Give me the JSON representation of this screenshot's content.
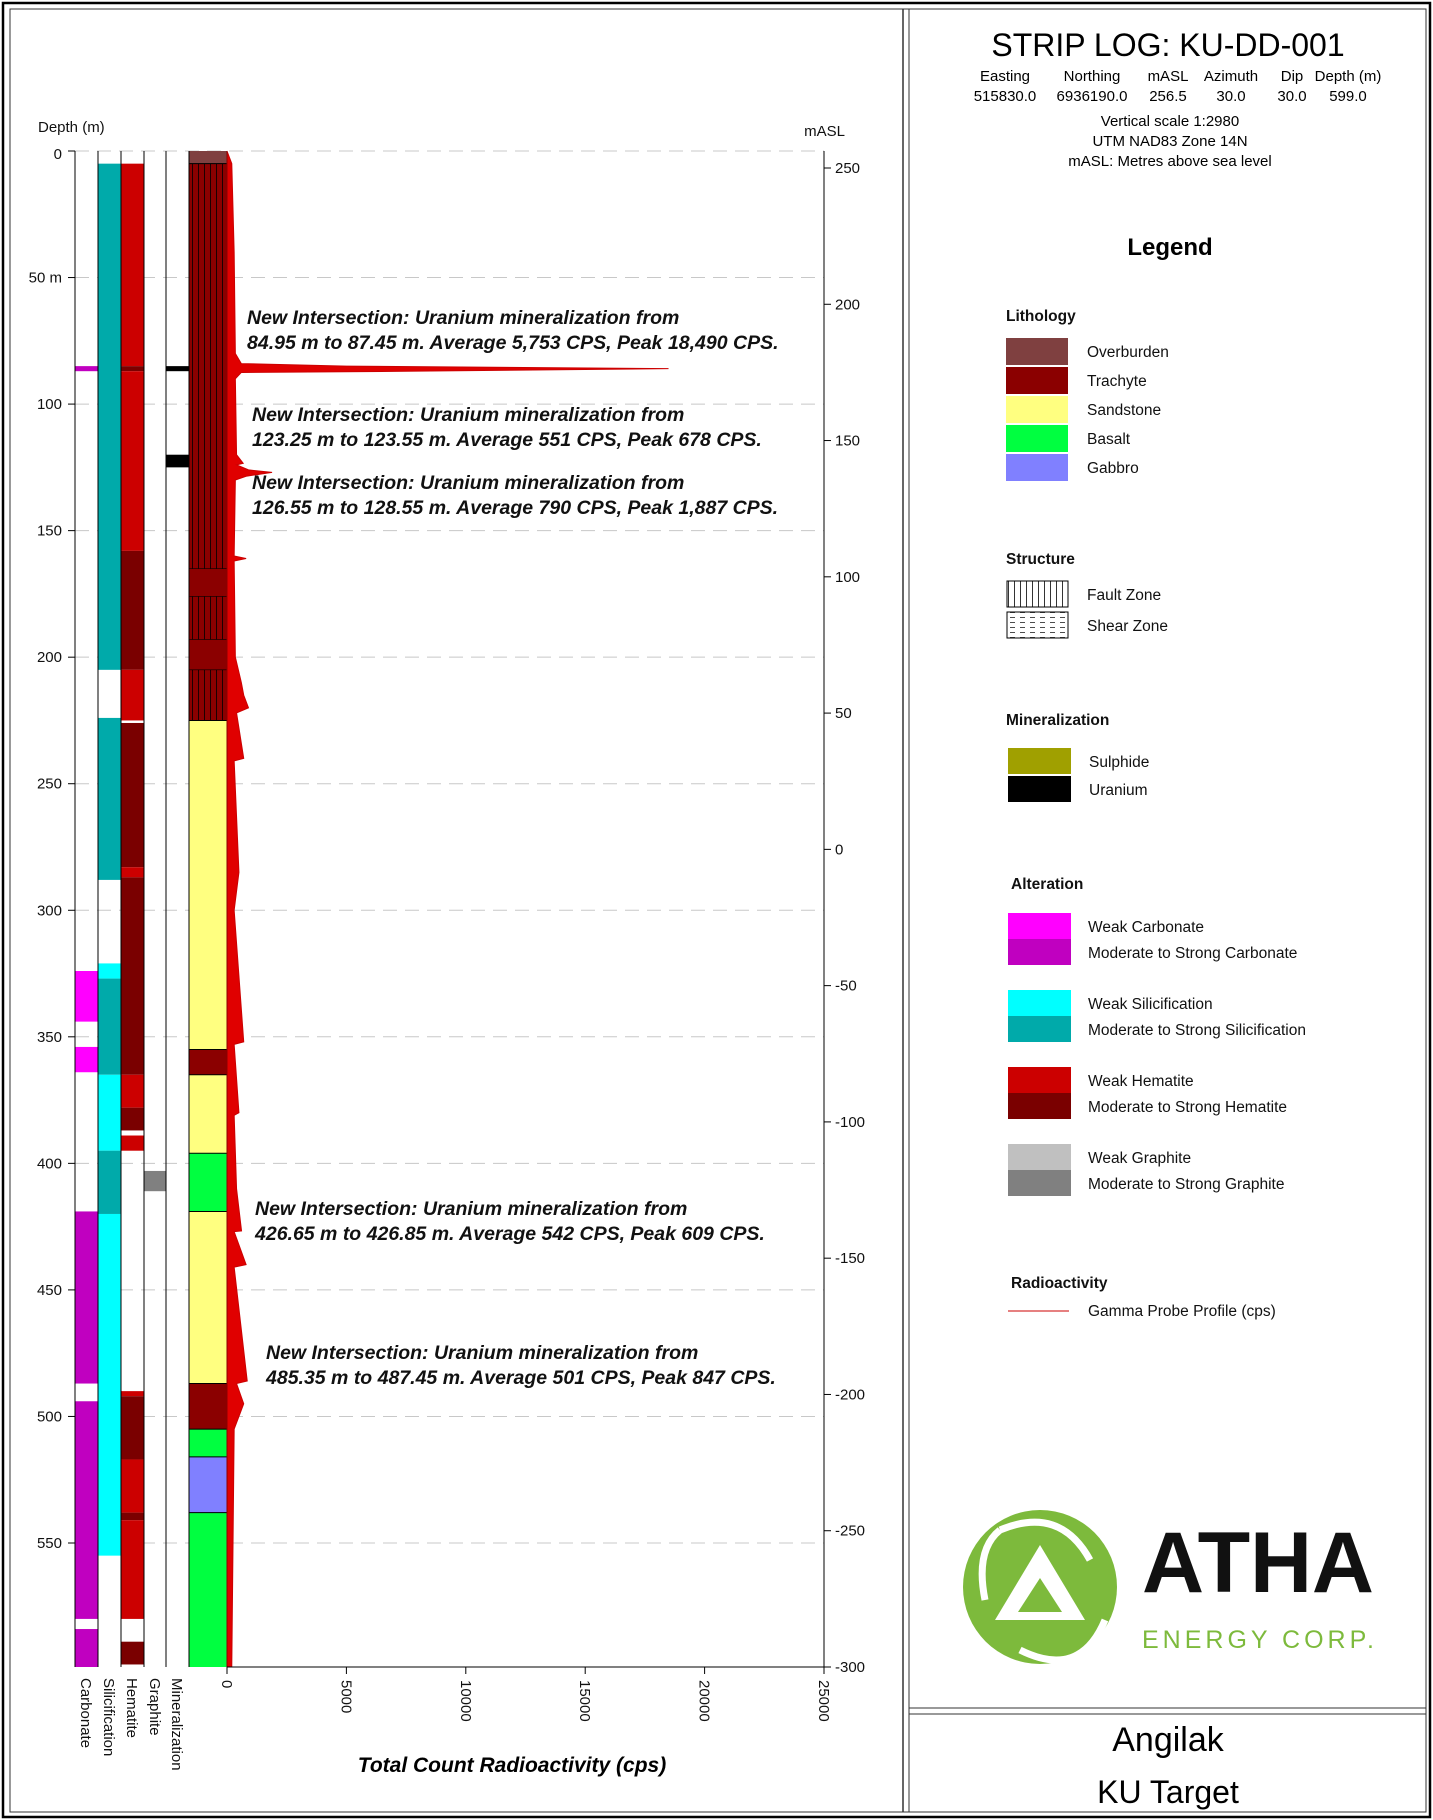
{
  "header": {
    "title": "STRIP LOG: KU-DD-001",
    "columns": [
      {
        "label": "Easting",
        "value": "515830.0"
      },
      {
        "label": "Northing",
        "value": "6936190.0"
      },
      {
        "label": "mASL",
        "value": "256.5"
      },
      {
        "label": "Azimuth",
        "value": "30.0"
      },
      {
        "label": "Dip",
        "value": "30.0"
      },
      {
        "label": "Depth (m)",
        "value": "599.0"
      }
    ],
    "notes": [
      "Vertical scale 1:2980",
      "UTM NAD83 Zone 14N",
      "mASL: Metres above sea level"
    ]
  },
  "legend": {
    "title": "Legend",
    "lithology": {
      "heading": "Lithology",
      "items": [
        {
          "label": "Overburden",
          "color": "#7f4040"
        },
        {
          "label": "Trachyte",
          "color": "#8b0000"
        },
        {
          "label": "Sandstone",
          "color": "#ffff80"
        },
        {
          "label": "Basalt",
          "color": "#00ff40"
        },
        {
          "label": "Gabbro",
          "color": "#8080ff"
        }
      ]
    },
    "structure": {
      "heading": "Structure",
      "items": [
        {
          "label": "Fault Zone",
          "pattern": "vertical-lines"
        },
        {
          "label": "Shear Zone",
          "pattern": "dashes"
        }
      ]
    },
    "mineralization": {
      "heading": "Mineralization",
      "items": [
        {
          "label": "Sulphide",
          "color": "#a0a000"
        },
        {
          "label": "Uranium",
          "color": "#000000"
        }
      ]
    },
    "alteration": {
      "heading": "Alteration",
      "items": [
        {
          "label": "Weak Carbonate",
          "color": "#ff00ff"
        },
        {
          "label": "Moderate to Strong Carbonate",
          "color": "#c000c0"
        },
        {
          "label": "Weak Silicification",
          "color": "#00ffff"
        },
        {
          "label": "Moderate to Strong Silicification",
          "color": "#00aaaa"
        },
        {
          "label": "Weak Hematite",
          "color": "#cc0000"
        },
        {
          "label": "Moderate to Strong Hematite",
          "color": "#7a0000"
        },
        {
          "label": "Weak Graphite",
          "color": "#c0c0c0"
        },
        {
          "label": "Moderate to Strong Graphite",
          "color": "#808080"
        }
      ]
    },
    "radioactivity": {
      "heading": "Radioactivity",
      "items": [
        {
          "label": "Gamma Probe Profile (cps)",
          "color": "#cc0000"
        }
      ]
    }
  },
  "logo": {
    "name": "ATHA",
    "sub": "ENERGY CORP.",
    "color": "#7dba3c"
  },
  "footer": {
    "project": "Angilak",
    "target": "KU Target"
  },
  "chart_data": {
    "type": "strip-log",
    "depth_axis": {
      "label": "Depth (m)",
      "range": [
        0,
        599
      ],
      "ticks": [
        "0",
        "50 m",
        "100",
        "150",
        "200",
        "250",
        "300",
        "350",
        "400",
        "450",
        "500",
        "550"
      ],
      "tick_values": [
        0,
        50,
        100,
        150,
        200,
        250,
        300,
        350,
        400,
        450,
        500,
        550
      ]
    },
    "masl_axis": {
      "label": "mASL",
      "range": [
        -300,
        250
      ],
      "ticks": [
        250,
        200,
        150,
        100,
        50,
        0,
        -50,
        -100,
        -150,
        -200,
        -250,
        -300
      ]
    },
    "x_axis": {
      "label": "Total Count Radioactivity (cps)",
      "range": [
        0,
        25000
      ],
      "ticks": [
        0,
        5000,
        10000,
        15000,
        20000,
        25000
      ]
    },
    "grid": true,
    "column_labels": [
      "Carbonate",
      "Silicification",
      "Hematite",
      "Graphite",
      "Mineralization"
    ],
    "carbonate": [
      [
        85,
        87,
        "#c000c0"
      ],
      [
        324,
        344,
        "#ff00ff"
      ],
      [
        354,
        364,
        "#ff00ff"
      ],
      [
        419,
        487,
        "#c000c0"
      ],
      [
        494,
        580,
        "#c000c0"
      ],
      [
        584,
        599,
        "#c000c0"
      ]
    ],
    "silicification": [
      [
        5,
        205,
        "#00aaaa"
      ],
      [
        224,
        288,
        "#00aaaa"
      ],
      [
        321,
        327,
        "#00ffff"
      ],
      [
        327,
        365,
        "#00aaaa"
      ],
      [
        365,
        395,
        "#00ffff"
      ],
      [
        395,
        420,
        "#00aaaa"
      ],
      [
        420,
        555,
        "#00ffff"
      ]
    ],
    "hematite": [
      [
        5,
        85,
        "#cc0000"
      ],
      [
        85,
        87,
        "#7a0000"
      ],
      [
        87,
        158,
        "#cc0000"
      ],
      [
        158,
        205,
        "#7a0000"
      ],
      [
        205,
        225,
        "#cc0000"
      ],
      [
        226,
        283,
        "#7a0000"
      ],
      [
        283,
        287,
        "#cc0000"
      ],
      [
        287,
        365,
        "#7a0000"
      ],
      [
        365,
        378,
        "#cc0000"
      ],
      [
        378,
        387,
        "#7a0000"
      ],
      [
        389,
        395,
        "#cc0000"
      ],
      [
        490,
        492,
        "#cc0000"
      ],
      [
        492,
        517,
        "#7a0000"
      ],
      [
        517,
        538,
        "#cc0000"
      ],
      [
        538,
        541,
        "#7a0000"
      ],
      [
        541,
        580,
        "#cc0000"
      ],
      [
        589,
        598,
        "#7a0000"
      ]
    ],
    "graphite": [
      [
        403,
        411,
        "#808080"
      ]
    ],
    "mineralization": [
      [
        85,
        87,
        "#000000"
      ],
      [
        120,
        125,
        "#000000"
      ]
    ],
    "lithology": [
      [
        0,
        5,
        "#7f4040"
      ],
      [
        5,
        225,
        "#8b0000"
      ],
      [
        225,
        355,
        "#ffff80"
      ],
      [
        355,
        365,
        "#8b0000"
      ],
      [
        365,
        396,
        "#ffff80"
      ],
      [
        396,
        419,
        "#00ff40"
      ],
      [
        419,
        487,
        "#ffff80"
      ],
      [
        487,
        505,
        "#8b0000"
      ],
      [
        505,
        516,
        "#00ff40"
      ],
      [
        516,
        538,
        "#8080ff"
      ],
      [
        538,
        599,
        "#00ff40"
      ]
    ],
    "fault_zones": [
      [
        5,
        165
      ],
      [
        176,
        193
      ],
      [
        205,
        225
      ]
    ],
    "gamma_profile": [
      [
        0,
        0
      ],
      [
        5,
        200
      ],
      [
        40,
        300
      ],
      [
        80,
        350
      ],
      [
        84,
        600
      ],
      [
        85,
        5000
      ],
      [
        86,
        18490
      ],
      [
        87,
        8000
      ],
      [
        87.5,
        600
      ],
      [
        90,
        350
      ],
      [
        120,
        400
      ],
      [
        123.4,
        678
      ],
      [
        124,
        400
      ],
      [
        126,
        900
      ],
      [
        127,
        1887
      ],
      [
        128.5,
        800
      ],
      [
        130,
        350
      ],
      [
        160,
        300
      ],
      [
        161,
        800
      ],
      [
        162,
        300
      ],
      [
        200,
        350
      ],
      [
        210,
        600
      ],
      [
        215,
        700
      ],
      [
        220,
        900
      ],
      [
        222,
        400
      ],
      [
        240,
        700
      ],
      [
        241,
        300
      ],
      [
        285,
        500
      ],
      [
        300,
        300
      ],
      [
        352,
        700
      ],
      [
        353,
        300
      ],
      [
        380,
        500
      ],
      [
        381,
        300
      ],
      [
        410,
        400
      ],
      [
        426.7,
        609
      ],
      [
        427,
        300
      ],
      [
        440,
        800
      ],
      [
        441,
        300
      ],
      [
        486,
        847
      ],
      [
        487,
        400
      ],
      [
        495,
        700
      ],
      [
        500,
        500
      ],
      [
        505,
        300
      ],
      [
        599,
        200
      ]
    ],
    "annotations": [
      {
        "depth": 86,
        "lines": [
          "New Intersection: Uranium mineralization from",
          "84.95 m to 87.45 m. Average 5,753 CPS, Peak 18,490 CPS."
        ]
      },
      {
        "depth": 123,
        "lines": [
          "New Intersection: Uranium mineralization from",
          "123.25 m to 123.55 m. Average 551 CPS, Peak 678 CPS."
        ]
      },
      {
        "depth": 127,
        "lines": [
          "New Intersection: Uranium mineralization from",
          "126.55 m to 128.55 m. Average 790 CPS, Peak 1,887 CPS."
        ]
      },
      {
        "depth": 427,
        "lines": [
          "New Intersection: Uranium mineralization from",
          "426.65 m to 426.85 m. Average 542 CPS, Peak 609 CPS."
        ]
      },
      {
        "depth": 486,
        "lines": [
          "New Intersection: Uranium mineralization from",
          "485.35 m to 487.45 m. Average 501 CPS, Peak 847 CPS."
        ]
      }
    ]
  }
}
